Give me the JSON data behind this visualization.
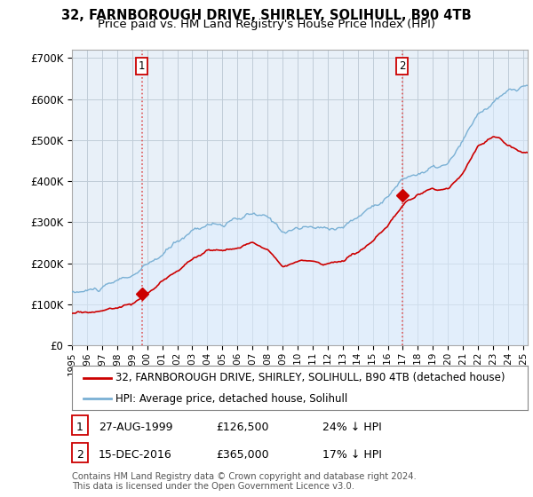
{
  "title": "32, FARNBOROUGH DRIVE, SHIRLEY, SOLIHULL, B90 4TB",
  "subtitle": "Price paid vs. HM Land Registry's House Price Index (HPI)",
  "xlim_start": 1995.0,
  "xlim_end": 2025.3,
  "ylim": [
    0,
    720000
  ],
  "yticks": [
    0,
    100000,
    200000,
    300000,
    400000,
    500000,
    600000,
    700000
  ],
  "ytick_labels": [
    "£0",
    "£100K",
    "£200K",
    "£300K",
    "£400K",
    "£500K",
    "£600K",
    "£700K"
  ],
  "sale1_x": 1999.65,
  "sale1_y": 126500,
  "sale1_label": "1",
  "sale2_x": 2016.96,
  "sale2_y": 365000,
  "sale2_label": "2",
  "line_color_property": "#cc0000",
  "line_color_hpi": "#7ab0d4",
  "hpi_fill_color": "#ddeeff",
  "vline_color": "#dd4444",
  "background_color": "#ffffff",
  "chart_bg_color": "#e8f0f8",
  "grid_color": "#c0ccd8",
  "legend_label_property": "32, FARNBOROUGH DRIVE, SHIRLEY, SOLIHULL, B90 4TB (detached house)",
  "legend_label_hpi": "HPI: Average price, detached house, Solihull",
  "table_row1": [
    "1",
    "27-AUG-1999",
    "£126,500",
    "24% ↓ HPI"
  ],
  "table_row2": [
    "2",
    "15-DEC-2016",
    "£365,000",
    "17% ↓ HPI"
  ],
  "footer": "Contains HM Land Registry data © Crown copyright and database right 2024.\nThis data is licensed under the Open Government Licence v3.0.",
  "title_fontsize": 10.5,
  "subtitle_fontsize": 9.5,
  "axis_fontsize": 8.5,
  "legend_fontsize": 8.5,
  "table_fontsize": 9
}
